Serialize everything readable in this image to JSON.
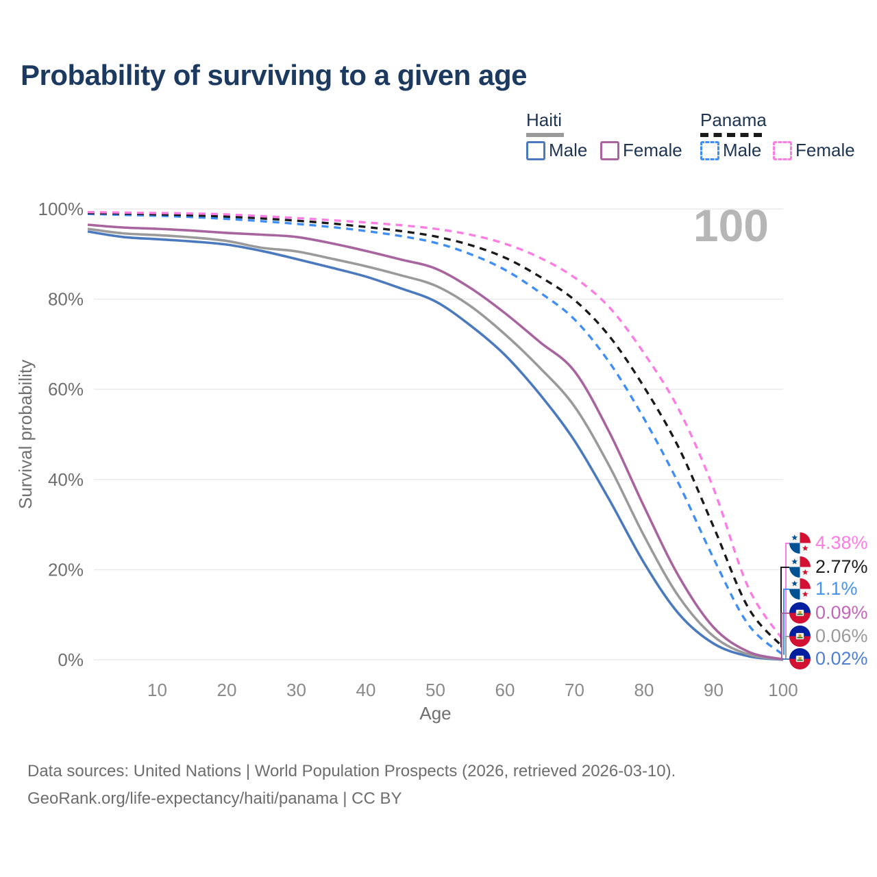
{
  "title": "Probability of surviving to a given age",
  "watermark_age": "100",
  "legend": {
    "groups": [
      {
        "country": "Haiti",
        "line_style": "solid",
        "swatch_color": "#9a9a9a",
        "items": [
          {
            "label": "Male",
            "color": "#4a79be",
            "dashed": false
          },
          {
            "label": "Female",
            "color": "#a8649f",
            "dashed": false
          }
        ]
      },
      {
        "country": "Panama",
        "line_style": "dashed",
        "swatch_color": "#1a1a1a",
        "items": [
          {
            "label": "Male",
            "color": "#3f8ef5",
            "dashed": true
          },
          {
            "label": "Female",
            "color": "#fb7de4",
            "dashed": true
          }
        ]
      }
    ]
  },
  "chart_data": {
    "type": "line",
    "title": "Probability of surviving to a given age",
    "xlabel": "Age",
    "ylabel": "Survival probability",
    "xlim": [
      0,
      100
    ],
    "ylim": [
      0,
      100
    ],
    "x_ticks": [
      10,
      20,
      30,
      40,
      50,
      60,
      70,
      80,
      90,
      100
    ],
    "y_ticks": [
      0,
      20,
      40,
      60,
      80,
      100
    ],
    "y_tick_format": "percent",
    "grid": "horizontal",
    "x": [
      0,
      5,
      10,
      15,
      20,
      25,
      30,
      35,
      40,
      45,
      50,
      55,
      60,
      65,
      70,
      75,
      80,
      85,
      90,
      95,
      100
    ],
    "series": [
      {
        "name": "Haiti Male",
        "country": "Haiti",
        "sex": "male",
        "color": "#4a79be",
        "dashed": false,
        "values": [
          95.0,
          93.8,
          93.3,
          92.8,
          92.1,
          90.7,
          88.9,
          87.0,
          85.0,
          82.4,
          79.5,
          74.2,
          67.6,
          58.9,
          48.6,
          35.5,
          21.5,
          10.2,
          3.6,
          0.8,
          0.02
        ]
      },
      {
        "name": "Haiti Both sexes",
        "country": "Haiti",
        "sex": "both",
        "color": "#9a9a9a",
        "dashed": false,
        "values": [
          95.6,
          94.6,
          94.2,
          93.7,
          92.9,
          91.4,
          90.6,
          89.0,
          87.3,
          85.3,
          83.0,
          78.5,
          72.2,
          64.8,
          56.2,
          43.0,
          27.5,
          14.0,
          5.2,
          1.2,
          0.06
        ]
      },
      {
        "name": "Haiti Female",
        "country": "Haiti",
        "sex": "female",
        "color": "#a8649f",
        "dashed": false,
        "values": [
          96.5,
          95.9,
          95.6,
          95.2,
          94.7,
          94.3,
          93.8,
          92.4,
          90.7,
          88.8,
          86.8,
          82.5,
          76.9,
          70.5,
          64.0,
          50.5,
          34.0,
          18.5,
          7.2,
          1.8,
          0.09
        ]
      },
      {
        "name": "Panama Male",
        "country": "Panama",
        "sex": "male",
        "color": "#3f8ef5",
        "dashed": true,
        "values": [
          98.9,
          98.7,
          98.5,
          98.2,
          97.8,
          97.3,
          96.7,
          96.0,
          95.1,
          94.0,
          92.5,
          90.0,
          86.5,
          81.5,
          75.5,
          66.0,
          53.5,
          39.0,
          22.5,
          7.8,
          1.1
        ]
      },
      {
        "name": "Panama Both sexes",
        "country": "Panama",
        "sex": "both",
        "color": "#1a1a1a",
        "dashed": true,
        "values": [
          99.1,
          99.0,
          98.8,
          98.6,
          98.3,
          97.9,
          97.4,
          96.8,
          96.0,
          95.1,
          93.9,
          92.0,
          89.2,
          85.0,
          79.8,
          71.8,
          60.5,
          47.0,
          29.5,
          11.5,
          2.77
        ]
      },
      {
        "name": "Panama Female",
        "country": "Panama",
        "sex": "female",
        "color": "#fb7de4",
        "dashed": true,
        "values": [
          99.3,
          99.2,
          99.1,
          99.0,
          98.8,
          98.4,
          98.0,
          97.5,
          97.0,
          96.4,
          95.6,
          94.3,
          92.3,
          89.2,
          84.8,
          78.2,
          68.0,
          55.5,
          38.0,
          16.0,
          4.38
        ]
      }
    ],
    "end_labels": [
      {
        "flag": "panama",
        "series": "Panama Female",
        "value_at_100": "4.38%",
        "color": "#fb7de4"
      },
      {
        "flag": "panama",
        "series": "Panama Both sexes",
        "value_at_100": "2.77%",
        "color": "#1d1d1d"
      },
      {
        "flag": "panama",
        "series": "Panama Male",
        "value_at_100": "1.1%",
        "color": "#4593f2"
      },
      {
        "flag": "haiti",
        "series": "Haiti Female",
        "value_at_100": "0.09%",
        "color": "#c166b8"
      },
      {
        "flag": "haiti",
        "series": "Haiti Both sexes",
        "value_at_100": "0.06%",
        "color": "#9a9a9a"
      },
      {
        "flag": "haiti",
        "series": "Haiti Male",
        "value_at_100": "0.02%",
        "color": "#4f7fd2"
      }
    ]
  },
  "footer": {
    "line1": "Data sources: United Nations | World Population Prospects (2026, retrieved 2026-03-10).",
    "line2": "GeoRank.org/life-expectancy/haiti/panama | CC BY"
  }
}
